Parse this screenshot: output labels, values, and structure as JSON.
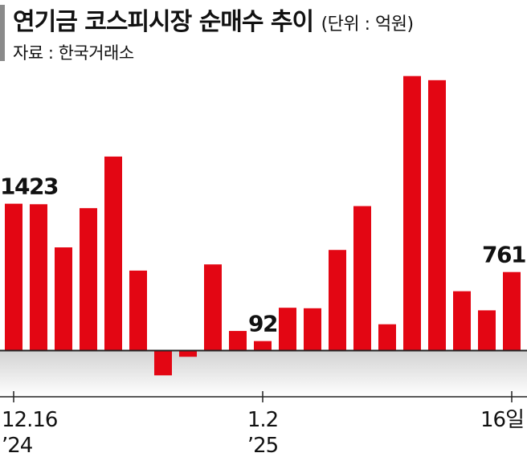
{
  "header": {
    "title": "연기금 코스피시장 순매수 추이",
    "unit": "(단위 : 억원)",
    "source": "자료 : 한국거래소"
  },
  "colors": {
    "bar": "#e30613",
    "axis": "#222222",
    "band_top": "#d2d2d2",
    "band_bottom": "#ffffff"
  },
  "chart_data": {
    "type": "bar",
    "unit": "억원",
    "values": [
      1423,
      1418,
      1000,
      1380,
      1880,
      775,
      -240,
      -60,
      835,
      190,
      92,
      415,
      410,
      975,
      1400,
      255,
      2660,
      2620,
      575,
      390,
      761
    ],
    "data_labels": [
      {
        "index": 0,
        "text": "1423"
      },
      {
        "index": 10,
        "text": "92"
      },
      {
        "index": 20,
        "text": "761"
      }
    ],
    "x_ticks": [
      {
        "index": 0,
        "line1": "12.16",
        "line2": "’24"
      },
      {
        "index": 10,
        "line1": "1.2",
        "line2": "’25"
      },
      {
        "index": 20,
        "line1": "16일",
        "line2": ""
      }
    ],
    "ylim": [
      -400,
      2700
    ],
    "grid": false
  }
}
